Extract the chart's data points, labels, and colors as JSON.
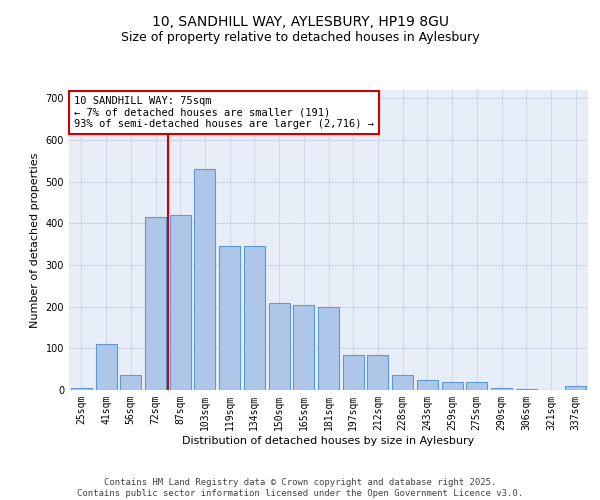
{
  "title_line1": "10, SANDHILL WAY, AYLESBURY, HP19 8GU",
  "title_line2": "Size of property relative to detached houses in Aylesbury",
  "xlabel": "Distribution of detached houses by size in Aylesbury",
  "ylabel": "Number of detached properties",
  "categories": [
    "25sqm",
    "41sqm",
    "56sqm",
    "72sqm",
    "87sqm",
    "103sqm",
    "119sqm",
    "134sqm",
    "150sqm",
    "165sqm",
    "181sqm",
    "197sqm",
    "212sqm",
    "228sqm",
    "243sqm",
    "259sqm",
    "275sqm",
    "290sqm",
    "306sqm",
    "321sqm",
    "337sqm"
  ],
  "values": [
    5,
    110,
    35,
    415,
    420,
    530,
    345,
    345,
    210,
    205,
    200,
    85,
    85,
    35,
    25,
    20,
    20,
    5,
    2,
    0,
    10
  ],
  "bar_color": "#aec6e8",
  "bar_edge_color": "#5b9bd5",
  "grid_color": "#d0d8e8",
  "background_color": "#e8eef8",
  "redline_x": 3.5,
  "redline_label": "10 SANDHILL WAY: 75sqm",
  "annotation_line2": "← 7% of detached houses are smaller (191)",
  "annotation_line3": "93% of semi-detached houses are larger (2,716) →",
  "annotation_box_color": "#ffffff",
  "annotation_box_edge": "#cc0000",
  "redline_color": "#cc0000",
  "ylim": [
    0,
    720
  ],
  "yticks": [
    0,
    100,
    200,
    300,
    400,
    500,
    600,
    700
  ],
  "footer": "Contains HM Land Registry data © Crown copyright and database right 2025.\nContains public sector information licensed under the Open Government Licence v3.0.",
  "title_fontsize": 10,
  "subtitle_fontsize": 9,
  "axis_label_fontsize": 8,
  "tick_fontsize": 7,
  "annotation_fontsize": 7.5,
  "footer_fontsize": 6.5
}
